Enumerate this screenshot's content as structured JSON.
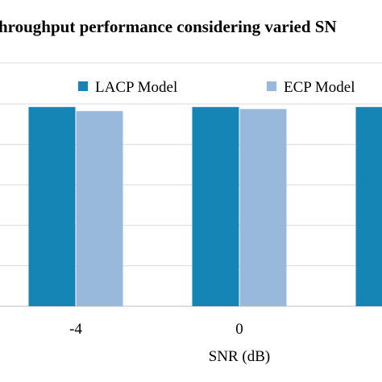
{
  "chart_data": {
    "type": "bar",
    "title": "hroughput performance considering varied SN",
    "xlabel": "SNR (dB)",
    "ylabel": "",
    "categories": [
      "-4",
      "0",
      ""
    ],
    "series": [
      {
        "name": "LACP Model",
        "color": "#1485b5",
        "values": [
          0.985,
          0.985,
          0.985
        ]
      },
      {
        "name": "ECP Model",
        "color": "#98b9dc",
        "values": [
          0.965,
          0.975,
          null
        ]
      }
    ],
    "ylim": [
      0,
      1
    ],
    "grid": true,
    "legend": "top"
  }
}
